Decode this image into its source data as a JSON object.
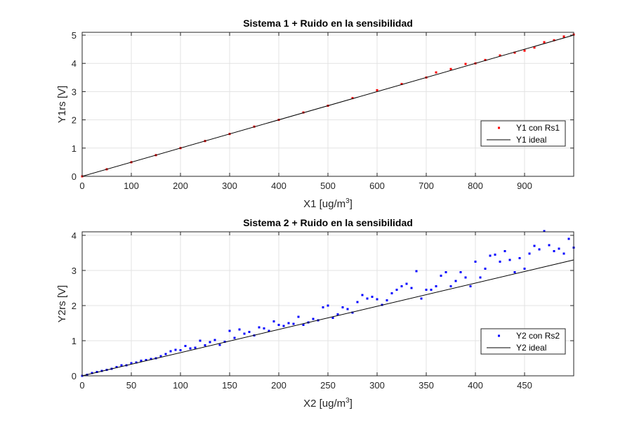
{
  "chart_data": [
    {
      "type": "scatter",
      "title": "Sistema 1 + Ruido en la sensibilidad",
      "xlabel": "X1 [ug/m",
      "xlabel_sup": "3",
      "xlabel_after": "]",
      "ylabel": "Y1rs [V]",
      "xlim": [
        0,
        1000
      ],
      "ylim": [
        0,
        5.1
      ],
      "xticks": [
        0,
        100,
        200,
        300,
        400,
        500,
        600,
        700,
        800,
        900
      ],
      "yticks": [
        0,
        1,
        2,
        3,
        4,
        5
      ],
      "grid": true,
      "legend_position": "right",
      "series": [
        {
          "name": "Y1 con Rs1",
          "kind": "markers",
          "color": "#ff0000",
          "x": [
            0,
            50,
            100,
            150,
            200,
            250,
            300,
            350,
            400,
            450,
            500,
            550,
            600,
            650,
            700,
            720,
            750,
            780,
            800,
            820,
            850,
            880,
            900,
            920,
            940,
            960,
            980,
            1000
          ],
          "y": [
            0,
            0.25,
            0.5,
            0.75,
            1.0,
            1.25,
            1.5,
            1.76,
            2.0,
            2.26,
            2.5,
            2.77,
            3.05,
            3.27,
            3.5,
            3.68,
            3.8,
            3.98,
            4.0,
            4.12,
            4.28,
            4.38,
            4.45,
            4.56,
            4.75,
            4.82,
            4.95,
            5.02
          ]
        },
        {
          "name": "Y1 ideal",
          "kind": "line",
          "color": "#000000",
          "x": [
            0,
            1000
          ],
          "y": [
            0,
            5
          ]
        }
      ]
    },
    {
      "type": "scatter",
      "title": "Sistema 2 + Ruido en la sensibilidad",
      "xlabel": "X2 [ug/m",
      "xlabel_sup": "3",
      "xlabel_after": "]",
      "ylabel": "Y2rs [V]",
      "xlim": [
        0,
        500
      ],
      "ylim": [
        0,
        4.1
      ],
      "xticks": [
        0,
        50,
        100,
        150,
        200,
        250,
        300,
        350,
        400,
        450
      ],
      "yticks": [
        0,
        1,
        2,
        3,
        4
      ],
      "grid": true,
      "legend_position": "right",
      "series": [
        {
          "name": "Y2 con Rs2",
          "kind": "markers",
          "color": "#0000ff",
          "x": [
            0,
            5,
            10,
            15,
            20,
            25,
            30,
            35,
            40,
            45,
            50,
            55,
            60,
            65,
            70,
            75,
            80,
            85,
            90,
            95,
            100,
            105,
            110,
            115,
            120,
            125,
            130,
            135,
            140,
            145,
            150,
            155,
            160,
            165,
            170,
            175,
            180,
            185,
            190,
            195,
            200,
            205,
            210,
            215,
            220,
            225,
            230,
            235,
            240,
            245,
            250,
            255,
            260,
            265,
            270,
            275,
            280,
            285,
            290,
            295,
            300,
            305,
            310,
            315,
            320,
            325,
            330,
            335,
            340,
            345,
            350,
            355,
            360,
            365,
            370,
            375,
            380,
            385,
            390,
            395,
            400,
            405,
            410,
            415,
            420,
            425,
            430,
            435,
            440,
            445,
            450,
            455,
            460,
            465,
            470,
            475,
            480,
            485,
            490,
            495,
            500
          ],
          "y": [
            0,
            0.03,
            0.08,
            0.11,
            0.14,
            0.17,
            0.2,
            0.25,
            0.3,
            0.3,
            0.36,
            0.38,
            0.43,
            0.45,
            0.48,
            0.5,
            0.56,
            0.62,
            0.7,
            0.74,
            0.73,
            0.85,
            0.78,
            0.8,
            1.0,
            0.87,
            0.96,
            1.02,
            0.88,
            0.97,
            1.28,
            1.08,
            1.32,
            1.2,
            1.25,
            1.15,
            1.38,
            1.35,
            1.28,
            1.55,
            1.45,
            1.42,
            1.5,
            1.48,
            1.68,
            1.45,
            1.52,
            1.62,
            1.58,
            1.95,
            2.0,
            1.65,
            1.75,
            1.95,
            1.9,
            1.8,
            2.1,
            2.3,
            2.2,
            2.25,
            2.18,
            2.02,
            2.15,
            2.35,
            2.45,
            2.55,
            2.62,
            2.5,
            2.98,
            2.2,
            2.45,
            2.45,
            2.55,
            2.85,
            2.95,
            2.55,
            2.7,
            2.95,
            2.8,
            2.55,
            3.25,
            2.8,
            3.05,
            3.42,
            3.45,
            3.25,
            3.55,
            3.3,
            2.95,
            3.35,
            3.05,
            3.48,
            3.7,
            3.6,
            4.12,
            3.72,
            3.55,
            3.62,
            3.48,
            3.9,
            3.65
          ]
        },
        {
          "name": "Y2 ideal",
          "kind": "line",
          "color": "#000000",
          "x": [
            0,
            500
          ],
          "y": [
            0,
            3.3
          ]
        }
      ]
    }
  ]
}
